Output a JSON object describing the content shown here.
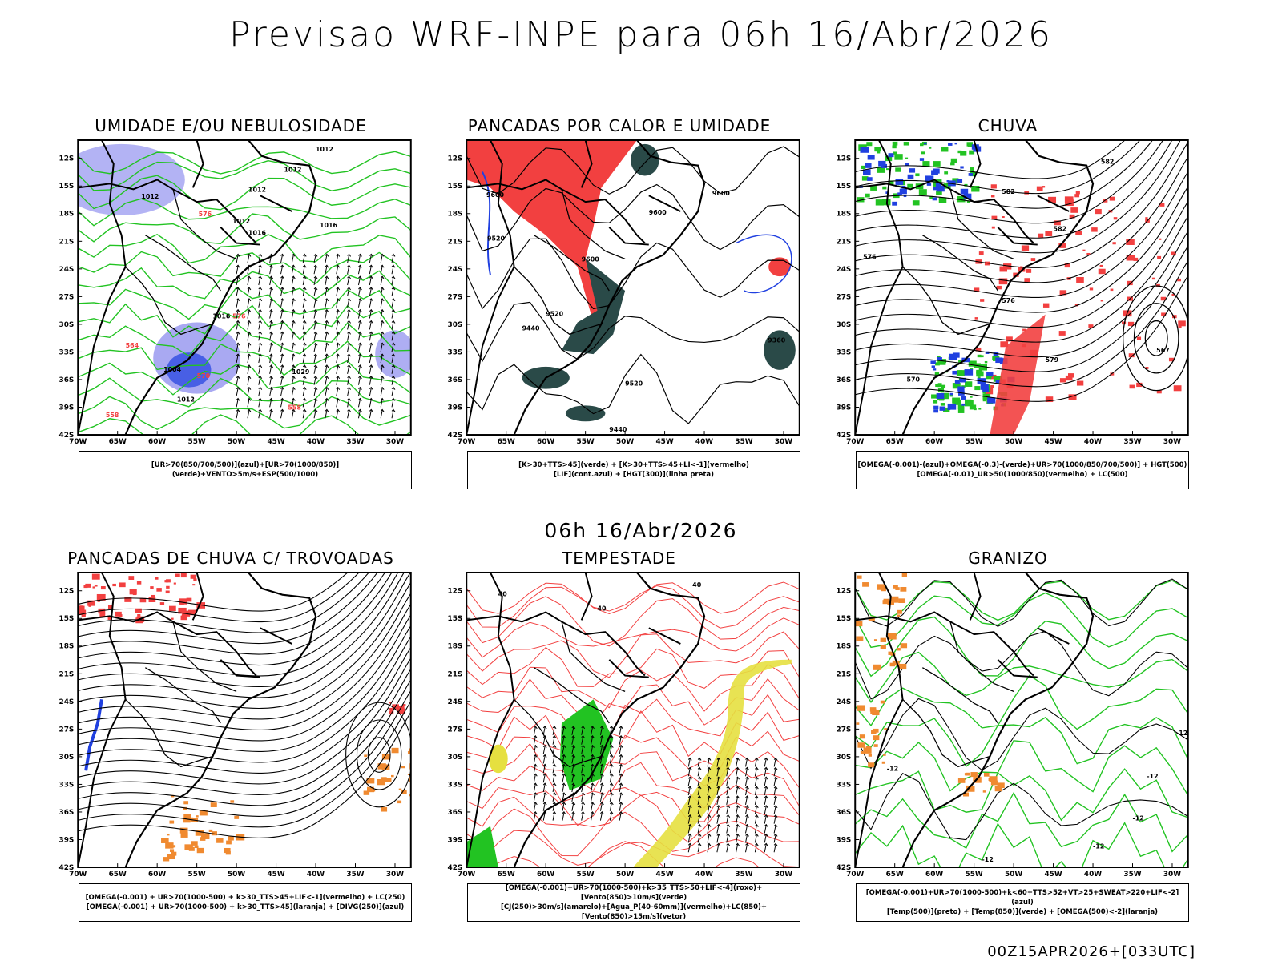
{
  "title": "Previsao WRF-INPE  para 06h 16/Abr/2026",
  "subtitle": "06h 16/Abr/2026",
  "footer": "00Z15APR2026+[033UTC]",
  "axes": {
    "lat_labels": [
      "12S",
      "15S",
      "18S",
      "21S",
      "24S",
      "27S",
      "30S",
      "33S",
      "36S",
      "39S",
      "42S"
    ],
    "lon_labels": [
      "70W",
      "65W",
      "60W",
      "55W",
      "50W",
      "45W",
      "40W",
      "35W",
      "30W"
    ]
  },
  "colors": {
    "red": "#f24040",
    "green": "#22c322",
    "blue": "#2040e0",
    "orange": "#f08a30",
    "yellow": "#e6e040",
    "darkgreen": "#2a4a48",
    "lavender": "#9a9af0",
    "black": "#000000"
  },
  "panels": [
    {
      "title": "UMIDADE E/OU NEBULOSIDADE",
      "legend": [
        "[UR>70(850/700/500)](azul)+[UR>70(1000/850)](verde)+VENTO>5m/s+ESP(500/1000)"
      ],
      "labels": [
        "1012",
        "1012",
        "1012",
        "1012",
        "1012",
        "1016",
        "1016",
        "1016",
        "1029",
        "1004",
        "1012",
        "576",
        "576",
        "570",
        "564",
        "558",
        "558"
      ]
    },
    {
      "title": "PANCADAS POR CALOR E UMIDADE",
      "legend": [
        "[K>30+TTS>45](verde) + [K>30+TTS>45+LI<-1](vermelho)",
        "[LIF](cont.azul) + [HGT(300)](linha preta)"
      ],
      "labels": [
        "9600",
        "9600",
        "9600",
        "9520",
        "9440",
        "9520",
        "9520",
        "9360",
        "9440",
        "9600"
      ]
    },
    {
      "title": "CHUVA",
      "legend": [
        "[OMEGA(-0.001)-(azul)+OMEGA(-0.3)-(verde)+UR>70(1000/850/700/500)] + HGT(500)",
        "[OMEGA(-0.01)_UR>50(1000/850)(vermelho) + LC(500)"
      ],
      "labels": [
        "582",
        "582",
        "582",
        "576",
        "576",
        "579",
        "570",
        "567"
      ]
    },
    {
      "title": "PANCADAS DE CHUVA C/ TROVOADAS",
      "legend": [
        "[OMEGA(-0.001) + UR>70(1000-500) + k>30_TTS>45+LIF<-1](vermelho) + LC(250)",
        "[OMEGA(-0.001) + UR>70(1000-500) + k>30_TTS>45](laranja) + [DIVG(250)](azul)"
      ],
      "labels": []
    },
    {
      "title": "TEMPESTADE",
      "legend": [
        "[OMEGA(-0.001)+UR>70(1000-500)+k>35_TTS>50+LIF<-4](roxo)+[Vento(850)>10m/s](verde)",
        "[CJ(250)>30m/s](amarelo)+[Agua_P(40-60mm)](vermelho)+LC(850)+[Vento(850)>15m/s](vetor)"
      ],
      "labels": [
        "40",
        "40",
        "40"
      ]
    },
    {
      "title": "GRANIZO",
      "legend": [
        "[OMEGA(-0.001)+UR>70(1000-500)+k<60+TTS>52+VT>25+SWEAT>220+LIF<-2](azul)",
        "[Temp(500)](preto) + [Temp(850)](verde) + [OMEGA(500)<-2](laranja)"
      ],
      "labels": [
        "-12",
        "-12",
        "-12",
        "-12",
        "-12",
        "-12"
      ]
    }
  ]
}
